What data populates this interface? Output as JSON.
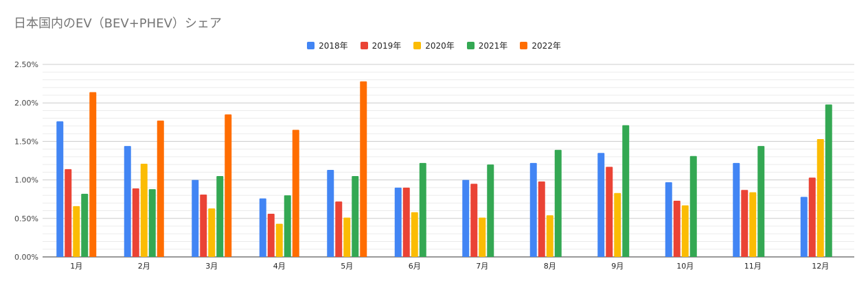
{
  "chart_data": {
    "type": "bar",
    "title": "日本国内のEV（BEV+PHEV）シェア",
    "xlabel": "",
    "ylabel": "",
    "categories": [
      "1月",
      "2月",
      "3月",
      "4月",
      "5月",
      "6月",
      "7月",
      "8月",
      "9月",
      "10月",
      "11月",
      "12月"
    ],
    "ylim": [
      0,
      2.5
    ],
    "yticks": [
      "0.00%",
      "0.50%",
      "1.00%",
      "1.50%",
      "2.00%",
      "2.50%"
    ],
    "grid": true,
    "legend_position": "top",
    "series": [
      {
        "name": "2018年",
        "color": "#4285f4",
        "values": [
          1.76,
          1.44,
          1.0,
          0.76,
          1.13,
          0.9,
          1.0,
          1.22,
          1.35,
          0.97,
          1.22,
          0.78
        ]
      },
      {
        "name": "2019年",
        "color": "#ea4335",
        "values": [
          1.14,
          0.89,
          0.81,
          0.56,
          0.72,
          0.9,
          0.95,
          0.98,
          1.17,
          0.73,
          0.87,
          1.03
        ]
      },
      {
        "name": "2020年",
        "color": "#fbbc04",
        "values": [
          0.66,
          1.21,
          0.63,
          0.43,
          0.51,
          0.58,
          0.51,
          0.54,
          0.83,
          0.67,
          0.84,
          1.53
        ]
      },
      {
        "name": "2021年",
        "color": "#34a853",
        "values": [
          0.82,
          0.88,
          1.05,
          0.8,
          1.05,
          1.22,
          1.2,
          1.39,
          1.71,
          1.31,
          1.44,
          1.98
        ]
      },
      {
        "name": "2022年",
        "color": "#ff6d01",
        "values": [
          2.14,
          1.77,
          1.85,
          1.65,
          2.28,
          null,
          null,
          null,
          null,
          null,
          null,
          null
        ]
      }
    ]
  }
}
